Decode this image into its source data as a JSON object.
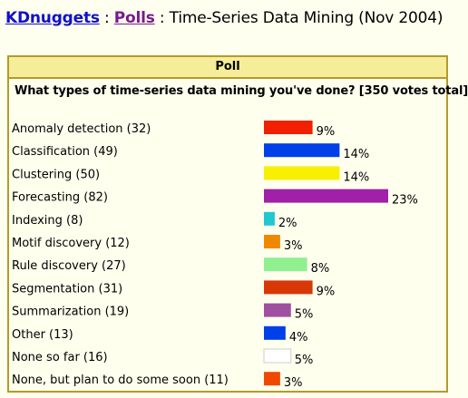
{
  "breadcrumb": {
    "home": "KDnuggets",
    "separator": ":",
    "polls": "Polls",
    "separator2": ":",
    "title": "Time-Series Data Mining (Nov 2004)"
  },
  "panel": {
    "header": "Poll",
    "question": "What types of time-series data mining you've done? [350 votes total]"
  },
  "chart_data": {
    "type": "bar",
    "orientation": "horizontal",
    "categories": [
      "Anomaly detection (32)",
      "Classification (49)",
      "Clustering (50)",
      "Forecasting (82)",
      "Indexing (8)",
      "Motif discovery (12)",
      "Rule discovery (27)",
      "Segmentation (31)",
      "Summarization (19)",
      "Other (13)",
      "None so far (16)",
      "None, but plan to do some soon (11)"
    ],
    "values": [
      9,
      14,
      14,
      23,
      2,
      3,
      8,
      9,
      5,
      4,
      5,
      3
    ],
    "data_labels": [
      "9%",
      "14%",
      "14%",
      "23%",
      "2%",
      "3%",
      "8%",
      "9%",
      "5%",
      "4%",
      "5%",
      "3%"
    ],
    "colors": [
      "#f02000",
      "#0040e8",
      "#f8f000",
      "#a020a8",
      "#20c8d0",
      "#f08800",
      "#90f090",
      "#d83808",
      "#a050a0",
      "#0040e8",
      "#ffffff",
      "#f04800"
    ],
    "xlim": [
      0,
      23
    ],
    "grid": false,
    "legend": "none"
  }
}
